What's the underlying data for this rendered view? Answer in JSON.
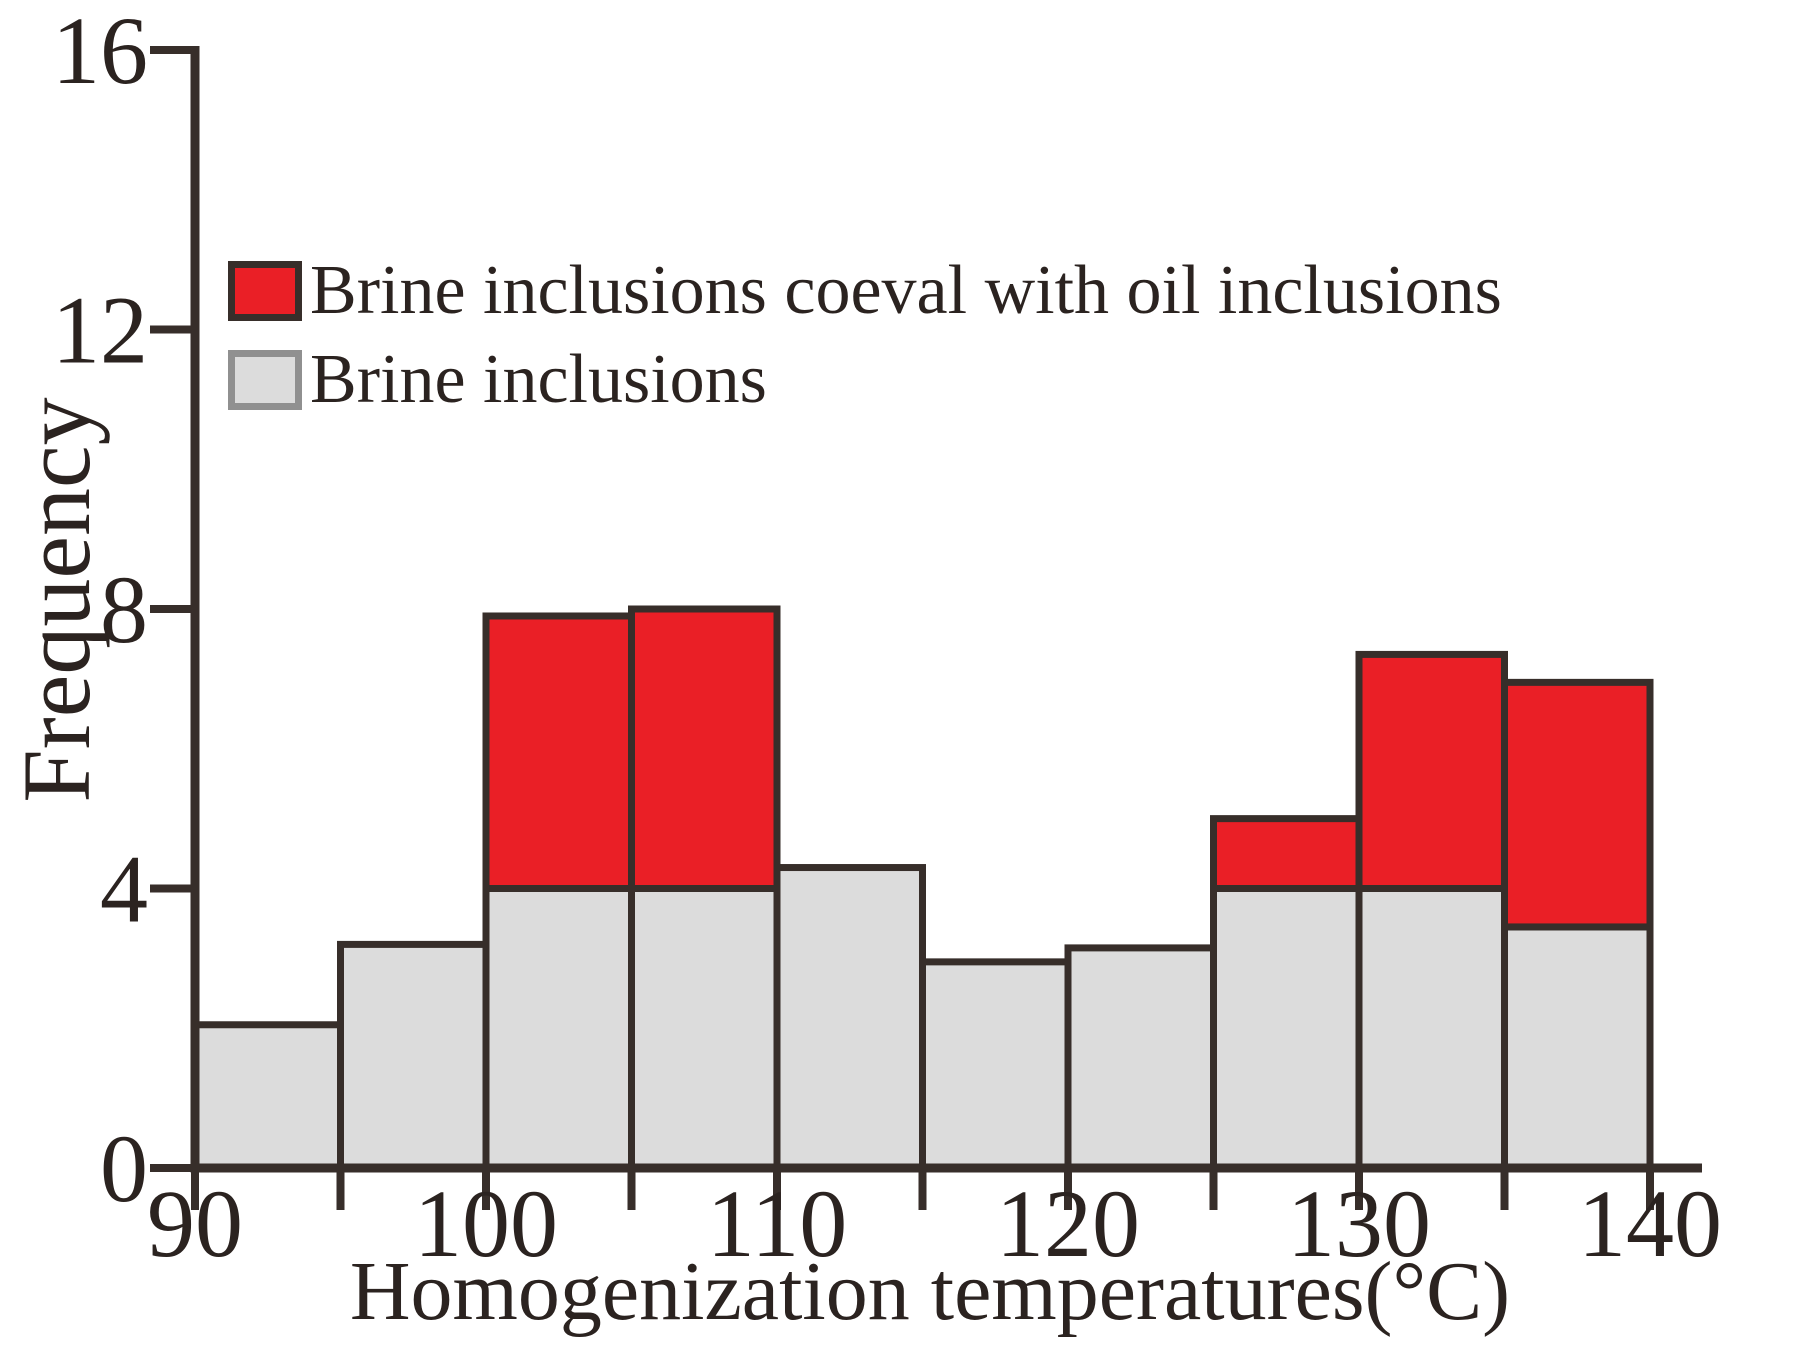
{
  "figure": {
    "ylabel": "Frequency",
    "xlabel": "Homogenization temperatures(°C)",
    "background": "#ffffff",
    "legend": [
      {
        "label": "Brine inclusions coeval with oil inclusions",
        "color": "#ea1f26",
        "border": "#372e2a"
      },
      {
        "label": "Brine inclusions",
        "color": "#dcdcdc",
        "border": "#909090"
      }
    ]
  },
  "chart_data": {
    "type": "bar",
    "subtype": "stacked-histogram",
    "title": "",
    "xlabel": "Homogenization temperatures(°C)",
    "ylabel": "Frequency",
    "bin_width": 5,
    "bin_edges": [
      90,
      95,
      100,
      105,
      110,
      115,
      120,
      125,
      130,
      135,
      140
    ],
    "series": [
      {
        "name": "Brine inclusions",
        "color": "#dcdcdc",
        "values": [
          2.05,
          3.2,
          4,
          4,
          4.3,
          2.95,
          3.15,
          4,
          4,
          3.45
        ]
      },
      {
        "name": "Brine inclusions coeval with oil inclusions",
        "color": "#ea1f26",
        "values": [
          0,
          0,
          3.9,
          4,
          0,
          0,
          0,
          1,
          3.35,
          3.5
        ]
      }
    ],
    "stack_totals": [
      2.05,
      3.2,
      7.9,
      8,
      4.3,
      2.95,
      3.15,
      5,
      7.35,
      6.95
    ],
    "x_tick_labels": [
      90,
      100,
      110,
      120,
      130,
      140
    ],
    "x_minor_ticks": [
      95,
      105,
      115,
      125,
      135
    ],
    "y_ticks": [
      0,
      4,
      8,
      12,
      16
    ],
    "xlim": [
      90,
      140
    ],
    "ylim": [
      0,
      16
    ],
    "grid": false,
    "legend_position": "upper-left-inside",
    "bar_border_color": "#372e2a",
    "axis_color": "#372e2a",
    "text_color": "#2b2320"
  }
}
